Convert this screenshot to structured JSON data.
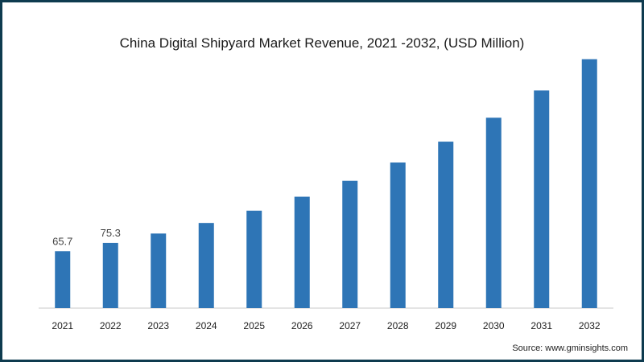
{
  "chart_data": {
    "type": "bar",
    "title": "China Digital Shipyard Market Revenue, 2021 -2032, (USD Million)",
    "xlabel": "",
    "ylabel": "",
    "categories": [
      "2021",
      "2022",
      "2023",
      "2024",
      "2025",
      "2026",
      "2027",
      "2028",
      "2029",
      "2030",
      "2031",
      "2032"
    ],
    "values": [
      65.7,
      75.3,
      86.1,
      98.3,
      112.5,
      128.6,
      147.0,
      168.1,
      192.2,
      219.8,
      251.3,
      287.4
    ],
    "data_labels": [
      "65.7",
      "75.3",
      "",
      "",
      "",
      "",
      "",
      "",
      "",
      "",
      "",
      ""
    ],
    "ylim": [
      0,
      300
    ],
    "grid": false,
    "legend": "none",
    "colors": {
      "bar": "#2e75b6",
      "axis": "#c8c8c8",
      "frame": "#0e3b4f"
    }
  },
  "source": "Source: www.gminsights.com"
}
